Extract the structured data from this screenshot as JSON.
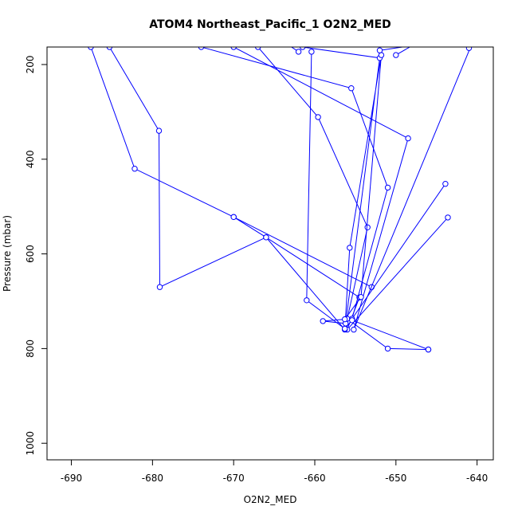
{
  "chart_data": {
    "type": "line",
    "title": "ATOM4 Northeast_Pacific_1 O2N2_MED",
    "xlabel": "O2N2_MED",
    "ylabel": "Pressure (mbar)",
    "xlim": [
      -693,
      -638
    ],
    "ylim": [
      1035,
      163
    ],
    "y_reversed": true,
    "x_ticks": [
      -690,
      -680,
      -670,
      -660,
      -650,
      -640
    ],
    "x_tick_labels": [
      "-690",
      "-680",
      "-670",
      "-660",
      "-650",
      "-640"
    ],
    "y_ticks": [
      200,
      400,
      600,
      800,
      1000
    ],
    "y_tick_labels": [
      "200",
      "400",
      "600",
      "800",
      "1000"
    ],
    "grid": false,
    "legend": "none",
    "color": "#0000ff",
    "series": [
      {
        "x": [
          -687.6,
          -682.2,
          -670.0,
          -653.0
        ],
        "y": [
          163,
          420,
          522,
          670
        ]
      },
      {
        "x": [
          -685.3,
          -679.2,
          -679.1,
          -666.0,
          -654.5,
          -656.0,
          -643.6
        ],
        "y": [
          163,
          340,
          670,
          565,
          692,
          760,
          523
        ]
      },
      {
        "x": [
          -667.0,
          -659.6,
          -653.5,
          -656.0,
          -651.0,
          -646.0
        ],
        "y": [
          163,
          311,
          544,
          737,
          800,
          802
        ]
      },
      {
        "x": [
          -674.0,
          -655.5,
          -651.0,
          -655.4,
          -643.9
        ],
        "y": [
          163,
          250,
          460,
          737,
          452
        ]
      },
      {
        "x": [
          -670.0,
          -648.5,
          -655.2,
          -640.0
        ],
        "y": [
          163,
          356,
          760,
          130
        ]
      },
      {
        "x": [
          -661.5,
          -652.0,
          -656.2,
          -659.0,
          -656.3,
          -654.3,
          -651.8,
          -655.7,
          -656.3,
          -666.0,
          -670.0
        ],
        "y": [
          163,
          186,
          747,
          742,
          738,
          691,
          180,
          587,
          760,
          565,
          522
        ]
      },
      {
        "x": [
          -660.4,
          -661.0,
          -656.3,
          -655.4,
          -646.0
        ],
        "y": [
          173,
          698,
          758,
          740,
          802
        ]
      },
      {
        "x": [
          -652.0,
          -648.0,
          -641.0
        ],
        "y": [
          170,
          160,
          140
        ]
      },
      {
        "x": [
          -650.0,
          -647.0
        ],
        "y": [
          180,
          150
        ]
      },
      {
        "x": [
          -662.0,
          -664.0
        ],
        "y": [
          173,
          150
        ]
      },
      {
        "x": [
          -641.0,
          -643.0
        ],
        "y": [
          165,
          145
        ]
      }
    ]
  }
}
